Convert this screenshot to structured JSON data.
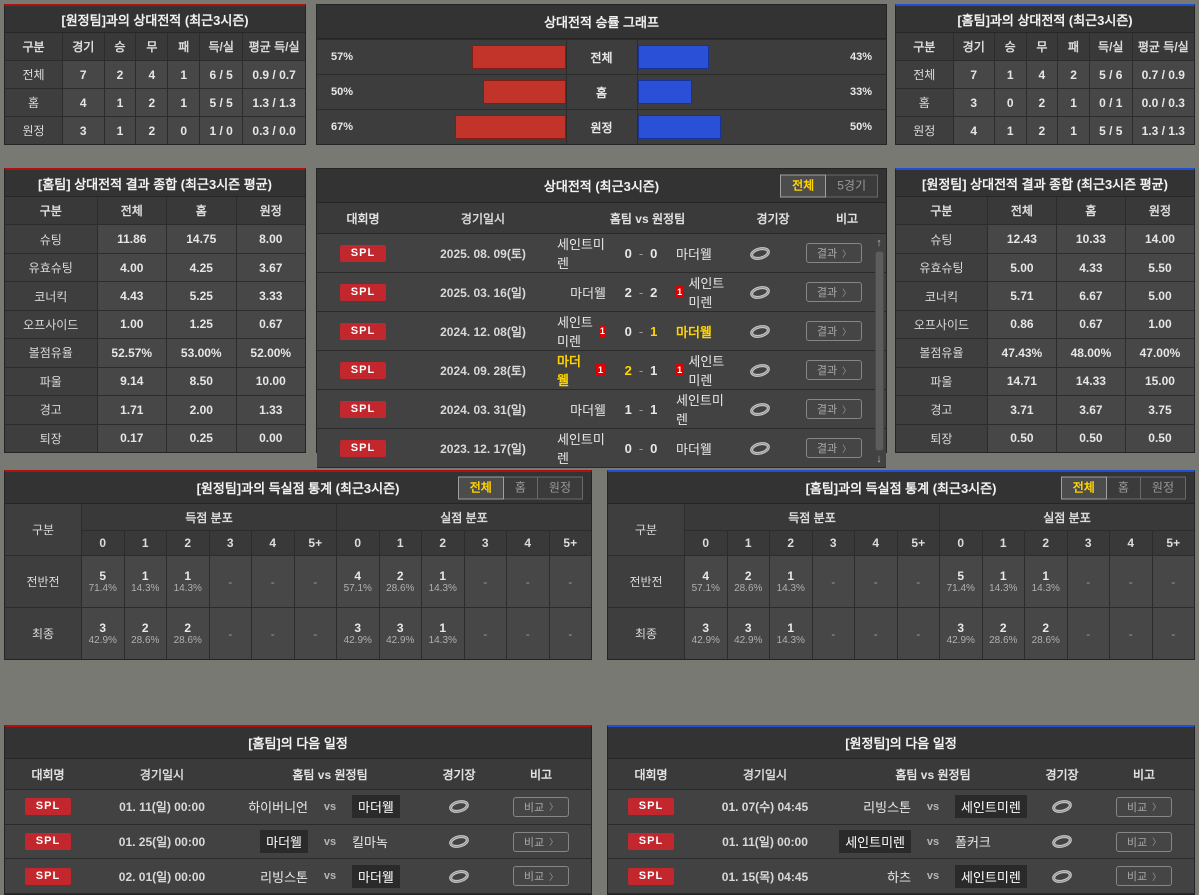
{
  "colors": {
    "home_bar": "#c23429",
    "away_bar": "#2b50d8",
    "accent_yellow": "#ffd400",
    "league_red": "#c1272d",
    "red_border": "#b01010",
    "blue_border": "#1e4fd6"
  },
  "vs_away": {
    "title": "[원정팀]과의 상대전적 (최근3시즌)",
    "headers": [
      "구분",
      "경기",
      "승",
      "무",
      "패",
      "득/실",
      "평균 득/실"
    ],
    "rows": [
      [
        "전체",
        "7",
        "2",
        "4",
        "1",
        "6 / 5",
        "0.9 / 0.7"
      ],
      [
        "홈",
        "4",
        "1",
        "2",
        "1",
        "5 / 5",
        "1.3 / 1.3"
      ],
      [
        "원정",
        "3",
        "1",
        "2",
        "0",
        "1 / 0",
        "0.3 / 0.0"
      ]
    ]
  },
  "chart": {
    "title": "상대전적 승률 그래프",
    "type": "bar",
    "rows": [
      {
        "label": "전체",
        "home_pct": 57,
        "away_pct": 43
      },
      {
        "label": "홈",
        "home_pct": 50,
        "away_pct": 33
      },
      {
        "label": "원정",
        "home_pct": 67,
        "away_pct": 50
      }
    ]
  },
  "vs_home": {
    "title": "[홈팀]과의 상대전적 (최근3시즌)",
    "headers": [
      "구분",
      "경기",
      "승",
      "무",
      "패",
      "득/실",
      "평균 득/실"
    ],
    "rows": [
      [
        "전체",
        "7",
        "1",
        "4",
        "2",
        "5 / 6",
        "0.7 / 0.9"
      ],
      [
        "홈",
        "3",
        "0",
        "2",
        "1",
        "0 / 1",
        "0.0 / 0.3"
      ],
      [
        "원정",
        "4",
        "1",
        "2",
        "1",
        "5 / 5",
        "1.3 / 1.3"
      ]
    ]
  },
  "home_stats": {
    "title": "[홈팀] 상대전적 결과 종합 (최근3시즌 평균)",
    "headers": [
      "구분",
      "전체",
      "홈",
      "원정"
    ],
    "rows": [
      [
        "슈팅",
        "11.86",
        "14.75",
        "8.00"
      ],
      [
        "유효슈팅",
        "4.00",
        "4.25",
        "3.67"
      ],
      [
        "코너킥",
        "4.43",
        "5.25",
        "3.33"
      ],
      [
        "오프사이드",
        "1.00",
        "1.25",
        "0.67"
      ],
      [
        "볼점유율",
        "52.57%",
        "53.00%",
        "52.00%"
      ],
      [
        "파울",
        "9.14",
        "8.50",
        "10.00"
      ],
      [
        "경고",
        "1.71",
        "2.00",
        "1.33"
      ],
      [
        "퇴장",
        "0.17",
        "0.25",
        "0.00"
      ]
    ]
  },
  "away_stats": {
    "title": "[원정팀] 상대전적 결과 종합 (최근3시즌 평균)",
    "headers": [
      "구분",
      "전체",
      "홈",
      "원정"
    ],
    "rows": [
      [
        "슈팅",
        "12.43",
        "10.33",
        "14.00"
      ],
      [
        "유효슈팅",
        "5.00",
        "4.33",
        "5.50"
      ],
      [
        "코너킥",
        "5.71",
        "6.67",
        "5.00"
      ],
      [
        "오프사이드",
        "0.86",
        "0.67",
        "1.00"
      ],
      [
        "볼점유율",
        "47.43%",
        "48.00%",
        "47.00%"
      ],
      [
        "파울",
        "14.71",
        "14.33",
        "15.00"
      ],
      [
        "경고",
        "3.71",
        "3.67",
        "3.75"
      ],
      [
        "퇴장",
        "0.50",
        "0.50",
        "0.50"
      ]
    ]
  },
  "h2h": {
    "title": "상대전적 (최근3시즌)",
    "tabs": [
      {
        "label": "전체",
        "active": true
      },
      {
        "label": "5경기",
        "active": false
      }
    ],
    "headers": {
      "league": "대회명",
      "date": "경기일시",
      "match": "홈팀  vs  원정팀",
      "stadium": "경기장",
      "note": "비고"
    },
    "button_label": "결과",
    "rows": [
      {
        "league": "SPL",
        "date": "2025. 08. 09(토)",
        "home": "세인트미렌",
        "home_card": false,
        "home_win": false,
        "sh": "0",
        "sa": "0",
        "away": "마더웰",
        "away_card": false,
        "away_win": false
      },
      {
        "league": "SPL",
        "date": "2025. 03. 16(일)",
        "home": "마더웰",
        "home_card": false,
        "home_win": false,
        "sh": "2",
        "sa": "2",
        "away": "세인트미렌",
        "away_card": true,
        "away_win": false
      },
      {
        "league": "SPL",
        "date": "2024. 12. 08(일)",
        "home": "세인트미렌",
        "home_card": true,
        "home_win": false,
        "sh": "0",
        "sa": "1",
        "away": "마더웰",
        "away_card": false,
        "away_win": true
      },
      {
        "league": "SPL",
        "date": "2024. 09. 28(토)",
        "home": "마더웰",
        "home_card": true,
        "home_win": true,
        "sh": "2",
        "sa": "1",
        "away": "세인트미렌",
        "away_card": true,
        "away_win": false
      },
      {
        "league": "SPL",
        "date": "2024. 03. 31(일)",
        "home": "마더웰",
        "home_card": false,
        "home_win": false,
        "sh": "1",
        "sa": "1",
        "away": "세인트미렌",
        "away_card": false,
        "away_win": false
      },
      {
        "league": "SPL",
        "date": "2023. 12. 17(일)",
        "home": "세인트미렌",
        "home_card": false,
        "home_win": false,
        "sh": "0",
        "sa": "0",
        "away": "마더웰",
        "away_card": false,
        "away_win": false
      }
    ]
  },
  "goals_away": {
    "title": "[원정팀]과의 득실점 통계 (최근3시즌)",
    "tabs": [
      {
        "label": "전체",
        "active": true
      },
      {
        "label": "홈",
        "active": false
      },
      {
        "label": "원정",
        "active": false
      }
    ],
    "col_label": "구분",
    "groups": [
      "득점 분포",
      "실점 분포"
    ],
    "bins": [
      "0",
      "1",
      "2",
      "3",
      "4",
      "5+"
    ],
    "dash": "-",
    "rows": [
      {
        "label": "전반전",
        "cells": [
          {
            "n": "5",
            "p": "71.4%"
          },
          {
            "n": "1",
            "p": "14.3%"
          },
          {
            "n": "1",
            "p": "14.3%"
          },
          null,
          null,
          null,
          {
            "n": "4",
            "p": "57.1%"
          },
          {
            "n": "2",
            "p": "28.6%"
          },
          {
            "n": "1",
            "p": "14.3%"
          },
          null,
          null,
          null
        ]
      },
      {
        "label": "최종",
        "cells": [
          {
            "n": "3",
            "p": "42.9%"
          },
          {
            "n": "2",
            "p": "28.6%"
          },
          {
            "n": "2",
            "p": "28.6%"
          },
          null,
          null,
          null,
          {
            "n": "3",
            "p": "42.9%"
          },
          {
            "n": "3",
            "p": "42.9%"
          },
          {
            "n": "1",
            "p": "14.3%"
          },
          null,
          null,
          null
        ]
      }
    ]
  },
  "goals_home": {
    "title": "[홈팀]과의 득실점 통계 (최근3시즌)",
    "tabs": [
      {
        "label": "전체",
        "active": true
      },
      {
        "label": "홈",
        "active": false
      },
      {
        "label": "원정",
        "active": false
      }
    ],
    "col_label": "구분",
    "groups": [
      "득점 분포",
      "실점 분포"
    ],
    "bins": [
      "0",
      "1",
      "2",
      "3",
      "4",
      "5+"
    ],
    "dash": "-",
    "rows": [
      {
        "label": "전반전",
        "cells": [
          {
            "n": "4",
            "p": "57.1%"
          },
          {
            "n": "2",
            "p": "28.6%"
          },
          {
            "n": "1",
            "p": "14.3%"
          },
          null,
          null,
          null,
          {
            "n": "5",
            "p": "71.4%"
          },
          {
            "n": "1",
            "p": "14.3%"
          },
          {
            "n": "1",
            "p": "14.3%"
          },
          null,
          null,
          null
        ]
      },
      {
        "label": "최종",
        "cells": [
          {
            "n": "3",
            "p": "42.9%"
          },
          {
            "n": "3",
            "p": "42.9%"
          },
          {
            "n": "1",
            "p": "14.3%"
          },
          null,
          null,
          null,
          {
            "n": "3",
            "p": "42.9%"
          },
          {
            "n": "2",
            "p": "28.6%"
          },
          {
            "n": "2",
            "p": "28.6%"
          },
          null,
          null,
          null
        ]
      }
    ]
  },
  "sched_home": {
    "title": "[홈팀]의 다음 일정",
    "headers": {
      "league": "대회명",
      "date": "경기일시",
      "match": "홈팀  vs  원정팀",
      "stadium": "경기장",
      "note": "비고"
    },
    "button_label": "비교",
    "vs_label": "vs",
    "rows": [
      {
        "league": "SPL",
        "date": "01. 11(일) 00:00",
        "home": "하이버니언",
        "away": "마더웰",
        "highlight": "away"
      },
      {
        "league": "SPL",
        "date": "01. 25(일) 00:00",
        "home": "마더웰",
        "away": "킬마녹",
        "highlight": "home"
      },
      {
        "league": "SPL",
        "date": "02. 01(일) 00:00",
        "home": "리빙스톤",
        "away": "마더웰",
        "highlight": "away"
      }
    ]
  },
  "sched_away": {
    "title": "[원정팀]의 다음 일정",
    "headers": {
      "league": "대회명",
      "date": "경기일시",
      "match": "홈팀  vs  원정팀",
      "stadium": "경기장",
      "note": "비고"
    },
    "button_label": "비교",
    "vs_label": "vs",
    "rows": [
      {
        "league": "SPL",
        "date": "01. 07(수) 04:45",
        "home": "리빙스톤",
        "away": "세인트미렌",
        "highlight": "away"
      },
      {
        "league": "SPL",
        "date": "01. 11(일) 00:00",
        "home": "세인트미렌",
        "away": "폴커크",
        "highlight": "home"
      },
      {
        "league": "SPL",
        "date": "01. 15(목) 04:45",
        "home": "하츠",
        "away": "세인트미렌",
        "highlight": "away"
      }
    ]
  }
}
